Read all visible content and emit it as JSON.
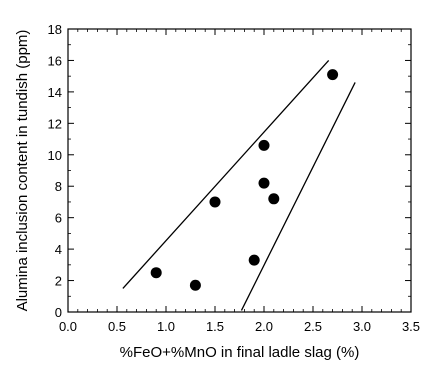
{
  "chart_data": {
    "type": "scatter",
    "xlabel": "%FeO+%MnO in final ladle slag (%)",
    "ylabel": "Alumina inclusion content in tundish (ppm)",
    "xlim": [
      0,
      3.5
    ],
    "ylim": [
      0,
      18
    ],
    "xticks": [
      "0.0",
      "0.5",
      "1.0",
      "1.5",
      "2.0",
      "2.5",
      "3.0",
      "3.5"
    ],
    "yticks": [
      "0",
      "2",
      "4",
      "6",
      "8",
      "10",
      "12",
      "14",
      "16",
      "18"
    ],
    "grid": false,
    "points": [
      {
        "x": 0.9,
        "y": 2.5
      },
      {
        "x": 1.3,
        "y": 1.7
      },
      {
        "x": 1.5,
        "y": 7.0
      },
      {
        "x": 1.9,
        "y": 3.3
      },
      {
        "x": 2.0,
        "y": 10.6
      },
      {
        "x": 2.0,
        "y": 8.2
      },
      {
        "x": 2.1,
        "y": 7.2
      },
      {
        "x": 2.7,
        "y": 15.1
      }
    ],
    "bounding_lines": [
      {
        "x": [
          0.56,
          2.66
        ],
        "y": [
          1.5,
          16.0
        ]
      },
      {
        "x": [
          1.77,
          2.93
        ],
        "y": [
          0.1,
          14.6
        ]
      }
    ]
  }
}
